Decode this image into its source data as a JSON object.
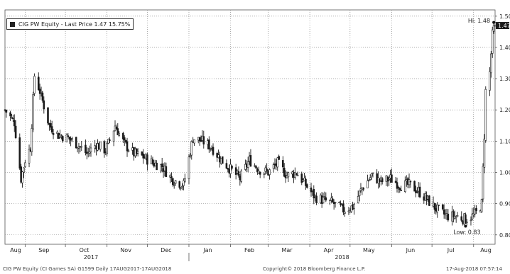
{
  "chart_data": {
    "type": "candlestick",
    "legend": "CIG PW Equity - Last Price 1.47  15.75%",
    "last_price_label": "1.47",
    "high_label": "Hi: 1.48",
    "low_label": "Low: 0.83",
    "ylim": [
      0.77,
      1.52
    ],
    "yticks": [
      "1.50",
      "1.40",
      "1.30",
      "1.20",
      "1.10",
      "1.00",
      "0.90",
      "0.80"
    ],
    "ytick_values": [
      1.5,
      1.4,
      1.3,
      1.2,
      1.1,
      1.0,
      0.9,
      0.8
    ],
    "months": [
      "Aug",
      "Sep",
      "Oct",
      "Nov",
      "Dec",
      "Jan",
      "Feb",
      "Mar",
      "Apr",
      "May",
      "Jun",
      "Jul",
      "Aug"
    ],
    "years": [
      "2017",
      "2018"
    ],
    "x_start": "2017-08-17",
    "x_end": "2018-08-17",
    "grid": true,
    "series_color": "#1a1a1a",
    "last_price_color": "#1a1a1a",
    "high_marker_color": "#d8b400",
    "close_anchors": [
      [
        "2017-08-17",
        1.2
      ],
      [
        "2017-08-24",
        1.16
      ],
      [
        "2017-08-29",
        0.98
      ],
      [
        "2017-09-01",
        1.04
      ],
      [
        "2017-09-05",
        1.08
      ],
      [
        "2017-09-08",
        1.31
      ],
      [
        "2017-09-12",
        1.26
      ],
      [
        "2017-09-19",
        1.15
      ],
      [
        "2017-09-26",
        1.12
      ],
      [
        "2017-10-03",
        1.11
      ],
      [
        "2017-10-10",
        1.09
      ],
      [
        "2017-10-17",
        1.06
      ],
      [
        "2017-10-24",
        1.09
      ],
      [
        "2017-10-31",
        1.07
      ],
      [
        "2017-11-07",
        1.15
      ],
      [
        "2017-11-14",
        1.09
      ],
      [
        "2017-11-21",
        1.06
      ],
      [
        "2017-11-28",
        1.05
      ],
      [
        "2017-12-05",
        1.03
      ],
      [
        "2017-12-12",
        1.02
      ],
      [
        "2017-12-19",
        0.98
      ],
      [
        "2017-12-28",
        0.96
      ],
      [
        "2018-01-04",
        1.11
      ],
      [
        "2018-01-11",
        1.1
      ],
      [
        "2018-01-18",
        1.08
      ],
      [
        "2018-01-25",
        1.04
      ],
      [
        "2018-02-01",
        1.01
      ],
      [
        "2018-02-08",
        0.98
      ],
      [
        "2018-02-15",
        1.04
      ],
      [
        "2018-02-22",
        1.01
      ],
      [
        "2018-03-01",
        1.0
      ],
      [
        "2018-03-08",
        1.03
      ],
      [
        "2018-03-15",
        0.99
      ],
      [
        "2018-03-22",
        1.0
      ],
      [
        "2018-03-29",
        0.96
      ],
      [
        "2018-04-05",
        0.92
      ],
      [
        "2018-04-12",
        0.91
      ],
      [
        "2018-04-19",
        0.9
      ],
      [
        "2018-04-26",
        0.88
      ],
      [
        "2018-05-03",
        0.89
      ],
      [
        "2018-05-10",
        0.95
      ],
      [
        "2018-05-17",
        0.99
      ],
      [
        "2018-05-24",
        0.97
      ],
      [
        "2018-05-31",
        0.98
      ],
      [
        "2018-06-07",
        0.96
      ],
      [
        "2018-06-14",
        0.96
      ],
      [
        "2018-06-21",
        0.94
      ],
      [
        "2018-06-28",
        0.91
      ],
      [
        "2018-07-05",
        0.88
      ],
      [
        "2018-07-12",
        0.86
      ],
      [
        "2018-07-19",
        0.86
      ],
      [
        "2018-07-26",
        0.85
      ],
      [
        "2018-07-31",
        0.86
      ],
      [
        "2018-08-03",
        0.87
      ],
      [
        "2018-08-07",
        0.9
      ],
      [
        "2018-08-09",
        1.12
      ],
      [
        "2018-08-10",
        1.26
      ],
      [
        "2018-08-13",
        1.32
      ],
      [
        "2018-08-14",
        1.38
      ],
      [
        "2018-08-15",
        1.44
      ],
      [
        "2018-08-16",
        1.46
      ],
      [
        "2018-08-17",
        1.47
      ]
    ],
    "high_point": [
      "2018-08-16",
      1.48
    ],
    "low_point": [
      "2018-07-26",
      0.83
    ]
  },
  "footer": {
    "left": "CIG PW Equity (CI Games SA) G1599  Daily 17AUG2017-17AUG2018",
    "center": "Copyright© 2018 Bloomberg Finance L.P.",
    "right": "17-Aug-2018 07:57:14"
  }
}
